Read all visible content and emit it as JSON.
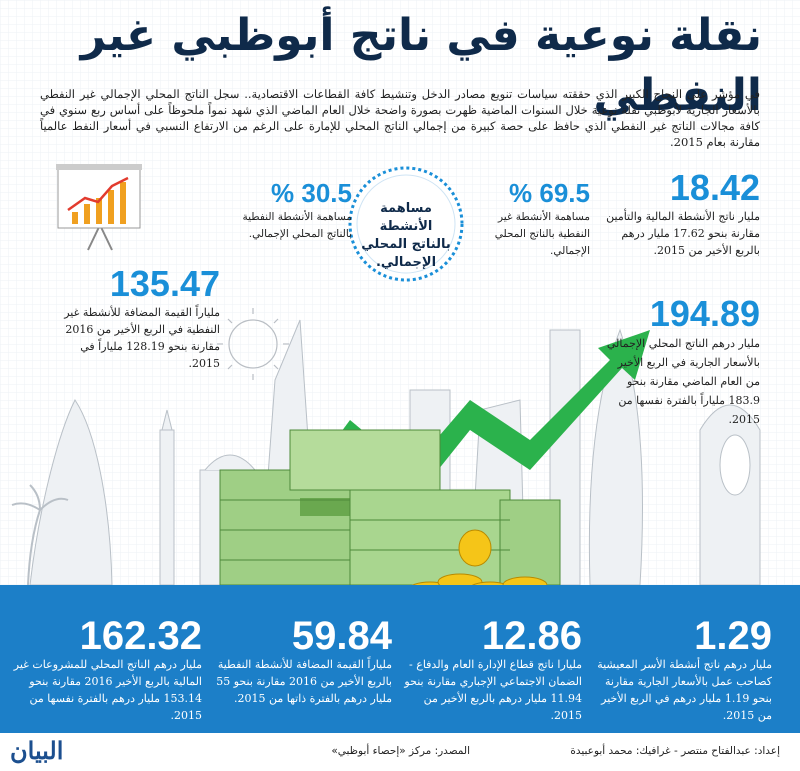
{
  "title": "نقلة نوعية في ناتج أبوظبي غير النفطي",
  "intro": "في مؤشر على النجاح الكبير الذي حققته سياسات تنويع مصادر الدخل وتنشيط كافة القطاعات الاقتصادية.. سجل الناتج المحلي الإجمالي غير النفطي بالأسعار الجارية لأبوظبي نقلة نوعية خلال السنوات الماضية ظهرت بصورة واضحة خلال العام الماضي الذي شهد نمواً ملحوظاً على أساس ربع سنوي في كافة مجالات الناتج غير النفطي الذي حافظ على حصة كبيرة من إجمالي الناتج المحلي للإمارة على الرغم من الارتفاع النسبي في أسعار النفط عالمياً مقارنة بعام 2015.",
  "center_circle": "مساهمة الأنشطة بالناتج المحلي الإجمالي.",
  "pct_left": {
    "value": "% 30.5",
    "text": "مساهمة الأنشطة النفطية بالناتج المحلي الإجمالي."
  },
  "pct_right": {
    "value": "% 69.5",
    "text": "مساهمة الأنشطة غير النفطية بالناتج المحلي الإجمالي."
  },
  "stat_1842": {
    "value": "18.42",
    "text": "مليار ناتج الأنشطة المالية والتأمين مقارنة بنحو 17.62 مليار درهم بالربع الأخير من 2015."
  },
  "stat_13547": {
    "value": "135.47",
    "text": "ملياراً القيمة المضافة للأنشطة غير النفطية في الربع الأخير من 2016 مقارنة بنحو 128.19 ملياراً في 2015."
  },
  "stat_19489": {
    "value": "194.89",
    "text": "مليار درهم الناتج المحلي الإجمالي بالأسعار الجارية في الربع الأخير من العام الماضي مقارنة بنحو 183.9 ملياراً بالفترة نفسها من 2015."
  },
  "bottom": [
    {
      "value": "1.29",
      "text": "مليار درهم ناتج أنشطة الأسر المعيشية كصاحب عمل بالأسعار الجارية مقارنة بنحو 1.19 مليار درهم في الربع الأخير من 2015."
    },
    {
      "value": "12.86",
      "text": "مليارا ناتج قطاع الإدارة العام والدفاع - الضمان الاجتماعي الإجباري مقارنة بنحو 11.94 مليار درهم بالربع الأخير من 2015."
    },
    {
      "value": "59.84",
      "text": "ملياراً القيمة المضافة للأنشطة النفطية بالربع الأخير من 2016 مقارنة بنحو 55 مليار درهم بالفترة ذاتها من 2015."
    },
    {
      "value": "162.32",
      "text": "مليار درهم الناتج المحلي للمشروعات غير المالية بالربع الأخير 2016 مقارنة بنحو 153.14 مليار درهم بالفترة نفسها من 2015."
    }
  ],
  "credits": {
    "prep": "إعداد: عبدالفتاح منتصر - غرافيك: محمد أبوعبيدة",
    "source": "المصدر: مركز «إحصاء أبوظبي»",
    "logo": "البيان"
  },
  "colors": {
    "accent": "#1a8fd8",
    "navy": "#0f2a4a",
    "bottom_band": "#1c7fc8",
    "arrow": "#2bb24c"
  }
}
